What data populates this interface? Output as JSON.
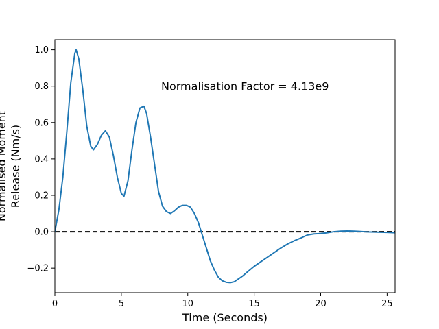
{
  "chart_data": {
    "type": "line",
    "title": "",
    "xlabel": "Time (Seconds)",
    "ylabel_lines": [
      "Normalised Moment",
      "Release (Nm/s)"
    ],
    "xlim": [
      0,
      25.6
    ],
    "ylim": [
      -0.335,
      1.055
    ],
    "xticks": [
      0,
      5,
      10,
      15,
      20,
      25
    ],
    "yticks": [
      -0.2,
      0.0,
      0.2,
      0.4,
      0.6,
      0.8,
      1.0
    ],
    "xtick_labels": [
      "0",
      "5",
      "10",
      "15",
      "20",
      "25"
    ],
    "ytick_labels": [
      "−0.2",
      "0.0",
      "0.2",
      "0.4",
      "0.6",
      "0.8",
      "1.0"
    ],
    "grid": false,
    "annotation": {
      "text": "Normalisation Factor = 4.13e9",
      "x": 8.0,
      "y": 0.8
    },
    "reference_line": {
      "y": 0.0,
      "style": "dashed",
      "color": "#000000"
    },
    "series": [
      {
        "color": "#1f77b4",
        "x": [
          0.0,
          0.3,
          0.6,
          0.9,
          1.2,
          1.5,
          1.6,
          1.8,
          2.1,
          2.4,
          2.7,
          2.9,
          3.2,
          3.5,
          3.8,
          4.1,
          4.4,
          4.7,
          5.0,
          5.2,
          5.5,
          5.8,
          6.1,
          6.4,
          6.7,
          6.9,
          7.2,
          7.5,
          7.8,
          8.1,
          8.4,
          8.7,
          9.0,
          9.3,
          9.6,
          9.9,
          10.2,
          10.5,
          10.8,
          11.1,
          11.4,
          11.7,
          12.0,
          12.3,
          12.6,
          12.9,
          13.2,
          13.5,
          13.8,
          14.1,
          14.5,
          15.0,
          15.5,
          16.0,
          16.5,
          17.0,
          17.5,
          18.0,
          18.5,
          19.0,
          19.5,
          20.0,
          20.5,
          21.0,
          21.5,
          22.0,
          22.5,
          23.0,
          23.5,
          24.0,
          24.5,
          25.0,
          25.6
        ],
        "y": [
          0.0,
          0.12,
          0.3,
          0.55,
          0.82,
          0.98,
          1.0,
          0.95,
          0.78,
          0.58,
          0.47,
          0.45,
          0.48,
          0.53,
          0.555,
          0.52,
          0.42,
          0.3,
          0.21,
          0.195,
          0.28,
          0.45,
          0.6,
          0.68,
          0.69,
          0.65,
          0.52,
          0.37,
          0.22,
          0.14,
          0.11,
          0.1,
          0.115,
          0.135,
          0.145,
          0.145,
          0.135,
          0.1,
          0.05,
          -0.02,
          -0.09,
          -0.16,
          -0.21,
          -0.25,
          -0.27,
          -0.278,
          -0.28,
          -0.275,
          -0.26,
          -0.245,
          -0.22,
          -0.19,
          -0.165,
          -0.14,
          -0.115,
          -0.09,
          -0.068,
          -0.05,
          -0.035,
          -0.018,
          -0.012,
          -0.01,
          -0.006,
          0.0,
          0.003,
          0.004,
          0.003,
          0.001,
          -0.001,
          -0.002,
          -0.003,
          -0.004,
          -0.006
        ]
      }
    ]
  }
}
